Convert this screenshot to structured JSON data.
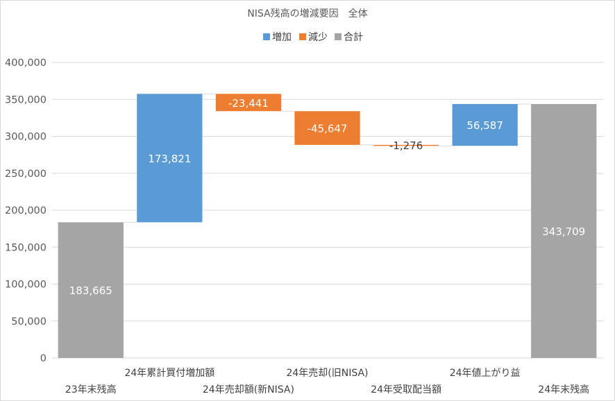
{
  "chart_data": {
    "type": "waterfall",
    "title": "NISA残高の増減要因　全体",
    "legend": {
      "position": "top",
      "items": [
        {
          "label": "増加",
          "color": "#5b9bd5"
        },
        {
          "label": "減少",
          "color": "#ed7d31"
        },
        {
          "label": "合計",
          "color": "#a5a5a5"
        }
      ]
    },
    "categories": [
      "23年末残高",
      "24年累計買付増加額",
      "24年売却額(新NISA)",
      "24年売却(旧NISA)",
      "24年受取配当額",
      "24年値上がり益",
      "24年末残高"
    ],
    "values": [
      183665,
      173821,
      -23441,
      -45647,
      -1276,
      56587,
      343709
    ],
    "value_labels": [
      "183,665",
      "173,821",
      "-23,441",
      "-45,647",
      "-1,276",
      "56,587",
      "343,709"
    ],
    "kinds": [
      "total",
      "increase",
      "decrease",
      "decrease",
      "decrease",
      "increase",
      "total"
    ],
    "ylim": [
      0,
      400000
    ],
    "y_ticks": [
      0,
      50000,
      100000,
      150000,
      200000,
      250000,
      300000,
      350000,
      400000
    ],
    "y_tick_labels": [
      "0",
      "50,000",
      "100,000",
      "150,000",
      "200,000",
      "250,000",
      "300,000",
      "350,000",
      "400,000"
    ],
    "grid": true,
    "colors": {
      "increase": "#5b9bd5",
      "decrease": "#ed7d31",
      "total": "#a5a5a5",
      "grid": "#d9d9d9",
      "connector": "#d9d9d9"
    }
  }
}
